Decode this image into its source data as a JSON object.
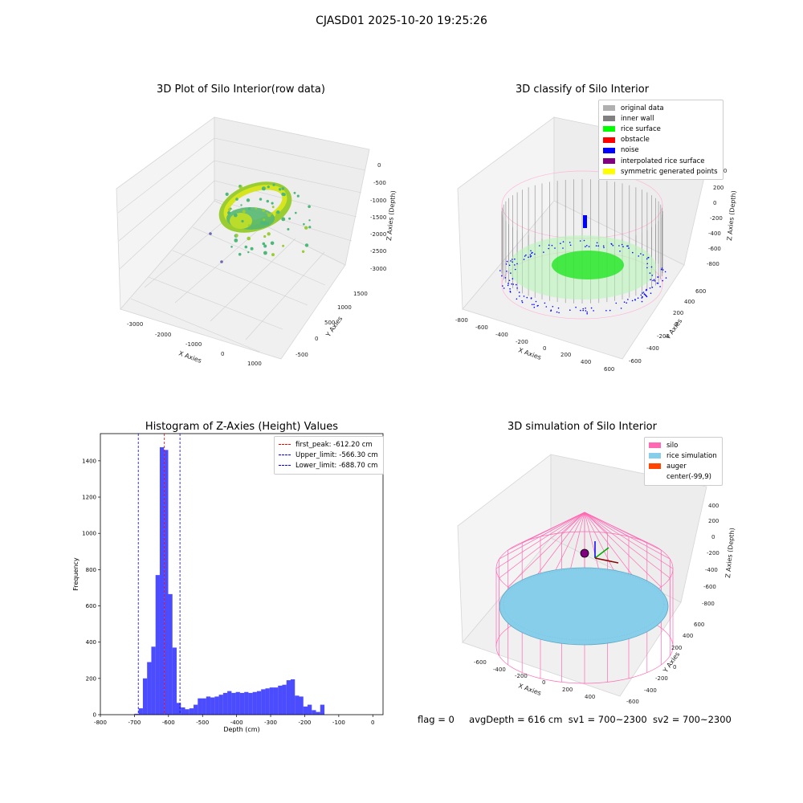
{
  "suptitle": "CJASD01 2025-10-20 19:25:26",
  "panels": {
    "raw": {
      "title": "3D Plot of Silo Interior(row data)",
      "xlabel": "X Axies",
      "ylabel": "Y Axies",
      "zlabel": "Z Axies (Depth)",
      "xticks": [
        "-3000",
        "-2000",
        "-1000",
        "0",
        "1000"
      ],
      "yticks": [
        "-500",
        "0",
        "500",
        "1000",
        "1500"
      ],
      "zticks": [
        "0",
        "-500",
        "-1000",
        "-1500",
        "-2000",
        "-2500",
        "-3000"
      ]
    },
    "classify": {
      "title": "3D classify of Silo Interior",
      "xlabel": "X Axies",
      "ylabel": "Y Axies",
      "zlabel": "Z Axies (Depth)",
      "xticks": [
        "-800",
        "-600",
        "-400",
        "-200",
        "0",
        "200",
        "400",
        "600"
      ],
      "yticks": [
        "-600",
        "-400",
        "-200",
        "0",
        "200",
        "400",
        "600"
      ],
      "zticks": [
        "400",
        "200",
        "0",
        "-200",
        "-400",
        "-600",
        "-800"
      ],
      "legend": [
        {
          "label": "original data",
          "color": "#b0b0b0"
        },
        {
          "label": "inner wall",
          "color": "#808080"
        },
        {
          "label": "rice surface",
          "color": "#00ff00"
        },
        {
          "label": "obstacle",
          "color": "#ff0000"
        },
        {
          "label": "noise",
          "color": "#0000ff"
        },
        {
          "label": "interpolated rice surface",
          "color": "#800080"
        },
        {
          "label": "symmetric generated points",
          "color": "#ffff00"
        }
      ]
    },
    "simulation": {
      "title": "3D simulation of Silo Interior",
      "xlabel": "X Axies",
      "ylabel": "Y Axies",
      "zlabel": "Z Axies (Depth)",
      "xticks": [
        "-600",
        "-400",
        "-200",
        "0",
        "200",
        "400"
      ],
      "yticks": [
        "-600",
        "-400",
        "-200",
        "0",
        "200",
        "400",
        "600"
      ],
      "zticks": [
        "400",
        "200",
        "0",
        "-200",
        "-400",
        "-600",
        "-800"
      ],
      "legend": [
        {
          "label": "silo",
          "color": "#ff69b4"
        },
        {
          "label": "rice simulation",
          "color": "#87ceeb"
        },
        {
          "label": "auger",
          "color": "#ff4500"
        },
        {
          "label": "center(-99,9)",
          "color": "#ffffff"
        }
      ]
    }
  },
  "chart_data": {
    "type": "bar",
    "title": "Histogram of Z-Axies (Height) Values",
    "xlabel": "Depth (cm)",
    "ylabel": "Frequency",
    "xlim": [
      -800,
      30
    ],
    "ylim": [
      0,
      1550
    ],
    "xticks": [
      -800,
      -700,
      -600,
      -500,
      -400,
      -300,
      -200,
      -100,
      0
    ],
    "yticks": [
      0,
      200,
      400,
      600,
      800,
      1000,
      1200,
      1400
    ],
    "bar_color": "#0000ff",
    "bin_width": 12.4,
    "bin_start": -700,
    "values": [
      5,
      35,
      200,
      290,
      375,
      770,
      1475,
      1460,
      665,
      370,
      65,
      40,
      30,
      35,
      55,
      90,
      90,
      100,
      95,
      100,
      110,
      120,
      130,
      120,
      125,
      120,
      125,
      120,
      125,
      130,
      140,
      145,
      150,
      150,
      160,
      165,
      190,
      195,
      105,
      100,
      45,
      55,
      25,
      15,
      55
    ],
    "vlines": [
      {
        "x": -612.2,
        "color": "#ff0000",
        "label": "first_peak: -612.20 cm"
      },
      {
        "x": -566.3,
        "color": "#0000ff",
        "label": "Upper_limit: -566.30 cm"
      },
      {
        "x": -688.7,
        "color": "#0000ff",
        "label": "Lower_limit: -688.70 cm"
      }
    ],
    "legend_position": "upper right"
  },
  "status": {
    "flag": "flag = 0",
    "avg": "avgDepth = 616 cm",
    "sv1": "sv1 = 700~2300",
    "sv2": "sv2 = 700~2300"
  }
}
